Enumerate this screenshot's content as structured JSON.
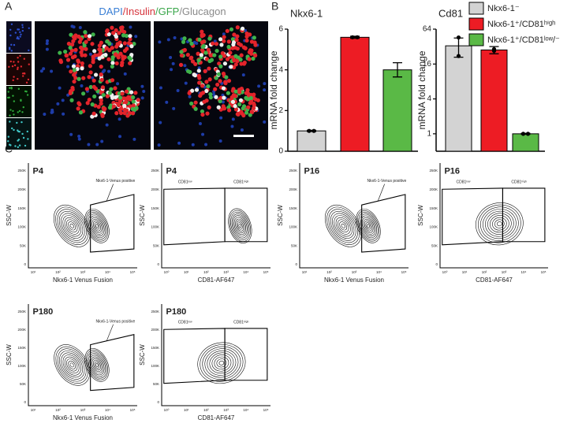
{
  "panel_a": {
    "letter": "A",
    "stains": [
      {
        "text": "DAPI",
        "color": "#3a7fd5"
      },
      {
        "text": "/Insulin",
        "color": "#d6333b"
      },
      {
        "text": "/GFP",
        "color": "#3aa64a"
      },
      {
        "text": "/Glucagon",
        "color": "#8a8a8a"
      }
    ]
  },
  "panel_b": {
    "letter": "B"
  },
  "chart_data": [
    {
      "type": "bar",
      "title": "Nkx6-1",
      "y_label": "mRNA fold change",
      "categories": [
        null
      ],
      "ylim": [
        0,
        6
      ],
      "yticks": [
        0,
        2,
        4,
        6
      ],
      "series": [
        {
          "name": "Nkx6-1⁻",
          "color": "#d3d3d3",
          "values": [
            1.0
          ],
          "errors": [
            0.03
          ],
          "points": [
            1.0,
            1.0
          ]
        },
        {
          "name": "Nkx6-1⁺/CD81ʰⁱᵍʰ",
          "color": "#ed1c24",
          "values": [
            5.6
          ],
          "errors": [
            0.05
          ],
          "points": [
            5.6,
            5.6
          ]
        },
        {
          "name": "Nkx6-1⁺/CD81ˡᵒʷ/⁻",
          "color": "#5ab946",
          "values": [
            4.0
          ],
          "errors": [
            0.35
          ],
          "points": []
        }
      ]
    },
    {
      "type": "bar",
      "title": "Cd81",
      "y_label": "mRNA fold change",
      "categories": [
        null
      ],
      "log_base": 2,
      "ylim": [
        0.5,
        64
      ],
      "yticks": [
        1,
        4,
        16,
        64
      ],
      "series": [
        {
          "color": "#d3d3d3",
          "values": [
            33
          ],
          "errors": [
            12
          ],
          "points": [
            46,
            22
          ]
        },
        {
          "color": "#ed1c24",
          "values": [
            28
          ],
          "errors": [
            4
          ],
          "points": [
            29,
            27
          ]
        },
        {
          "color": "#5ab946",
          "values": [
            1.0
          ],
          "errors": [
            0.02
          ],
          "points": [
            1.0,
            1.0
          ]
        }
      ]
    }
  ],
  "panel_c": {
    "letter": "C",
    "y_label": "SSC-W",
    "y_ticks": [
      "0",
      "50K",
      "100K",
      "150K",
      "200K",
      "250K"
    ],
    "x_ticks_venus": [
      "10¹",
      "10²",
      "10³",
      "10⁴",
      "10⁵"
    ],
    "x_ticks_cd81": [
      "10⁰",
      "10¹",
      "10²",
      "10³",
      "10⁴",
      "10⁵"
    ],
    "plots": [
      {
        "label": "P4",
        "kind": "venus",
        "x_label": "Nkx6-1 Venus Fusion",
        "gates": [
          "Nkx6-1-Venus positive"
        ]
      },
      {
        "label": "P4",
        "kind": "cd81a",
        "x_label": "CD81-AF647",
        "gates": [
          "CD81ˡᵒʷ",
          "CD81ʰⁱᵍʰ"
        ]
      },
      {
        "label": "P16",
        "kind": "venus",
        "x_label": "Nkx6-1 Venus Fusion",
        "gates": [
          "Nkx6-1-Venus positive"
        ]
      },
      {
        "label": "P16",
        "kind": "cd81b",
        "x_label": "CD81-AF647",
        "gates": [
          "CD81ˡᵒʷ",
          "CD81ʰⁱᵍʰ"
        ]
      },
      {
        "label": "P180",
        "kind": "venus",
        "x_label": "Nkx6-1 Venus Fusion",
        "gates": [
          "Nkx6-1-Venus positive"
        ]
      },
      {
        "label": "P180",
        "kind": "cd81b",
        "x_label": "CD81-AF647",
        "gates": [
          "CD81ˡᵒʷ",
          "CD81ʰⁱᵍʰ"
        ]
      }
    ]
  }
}
